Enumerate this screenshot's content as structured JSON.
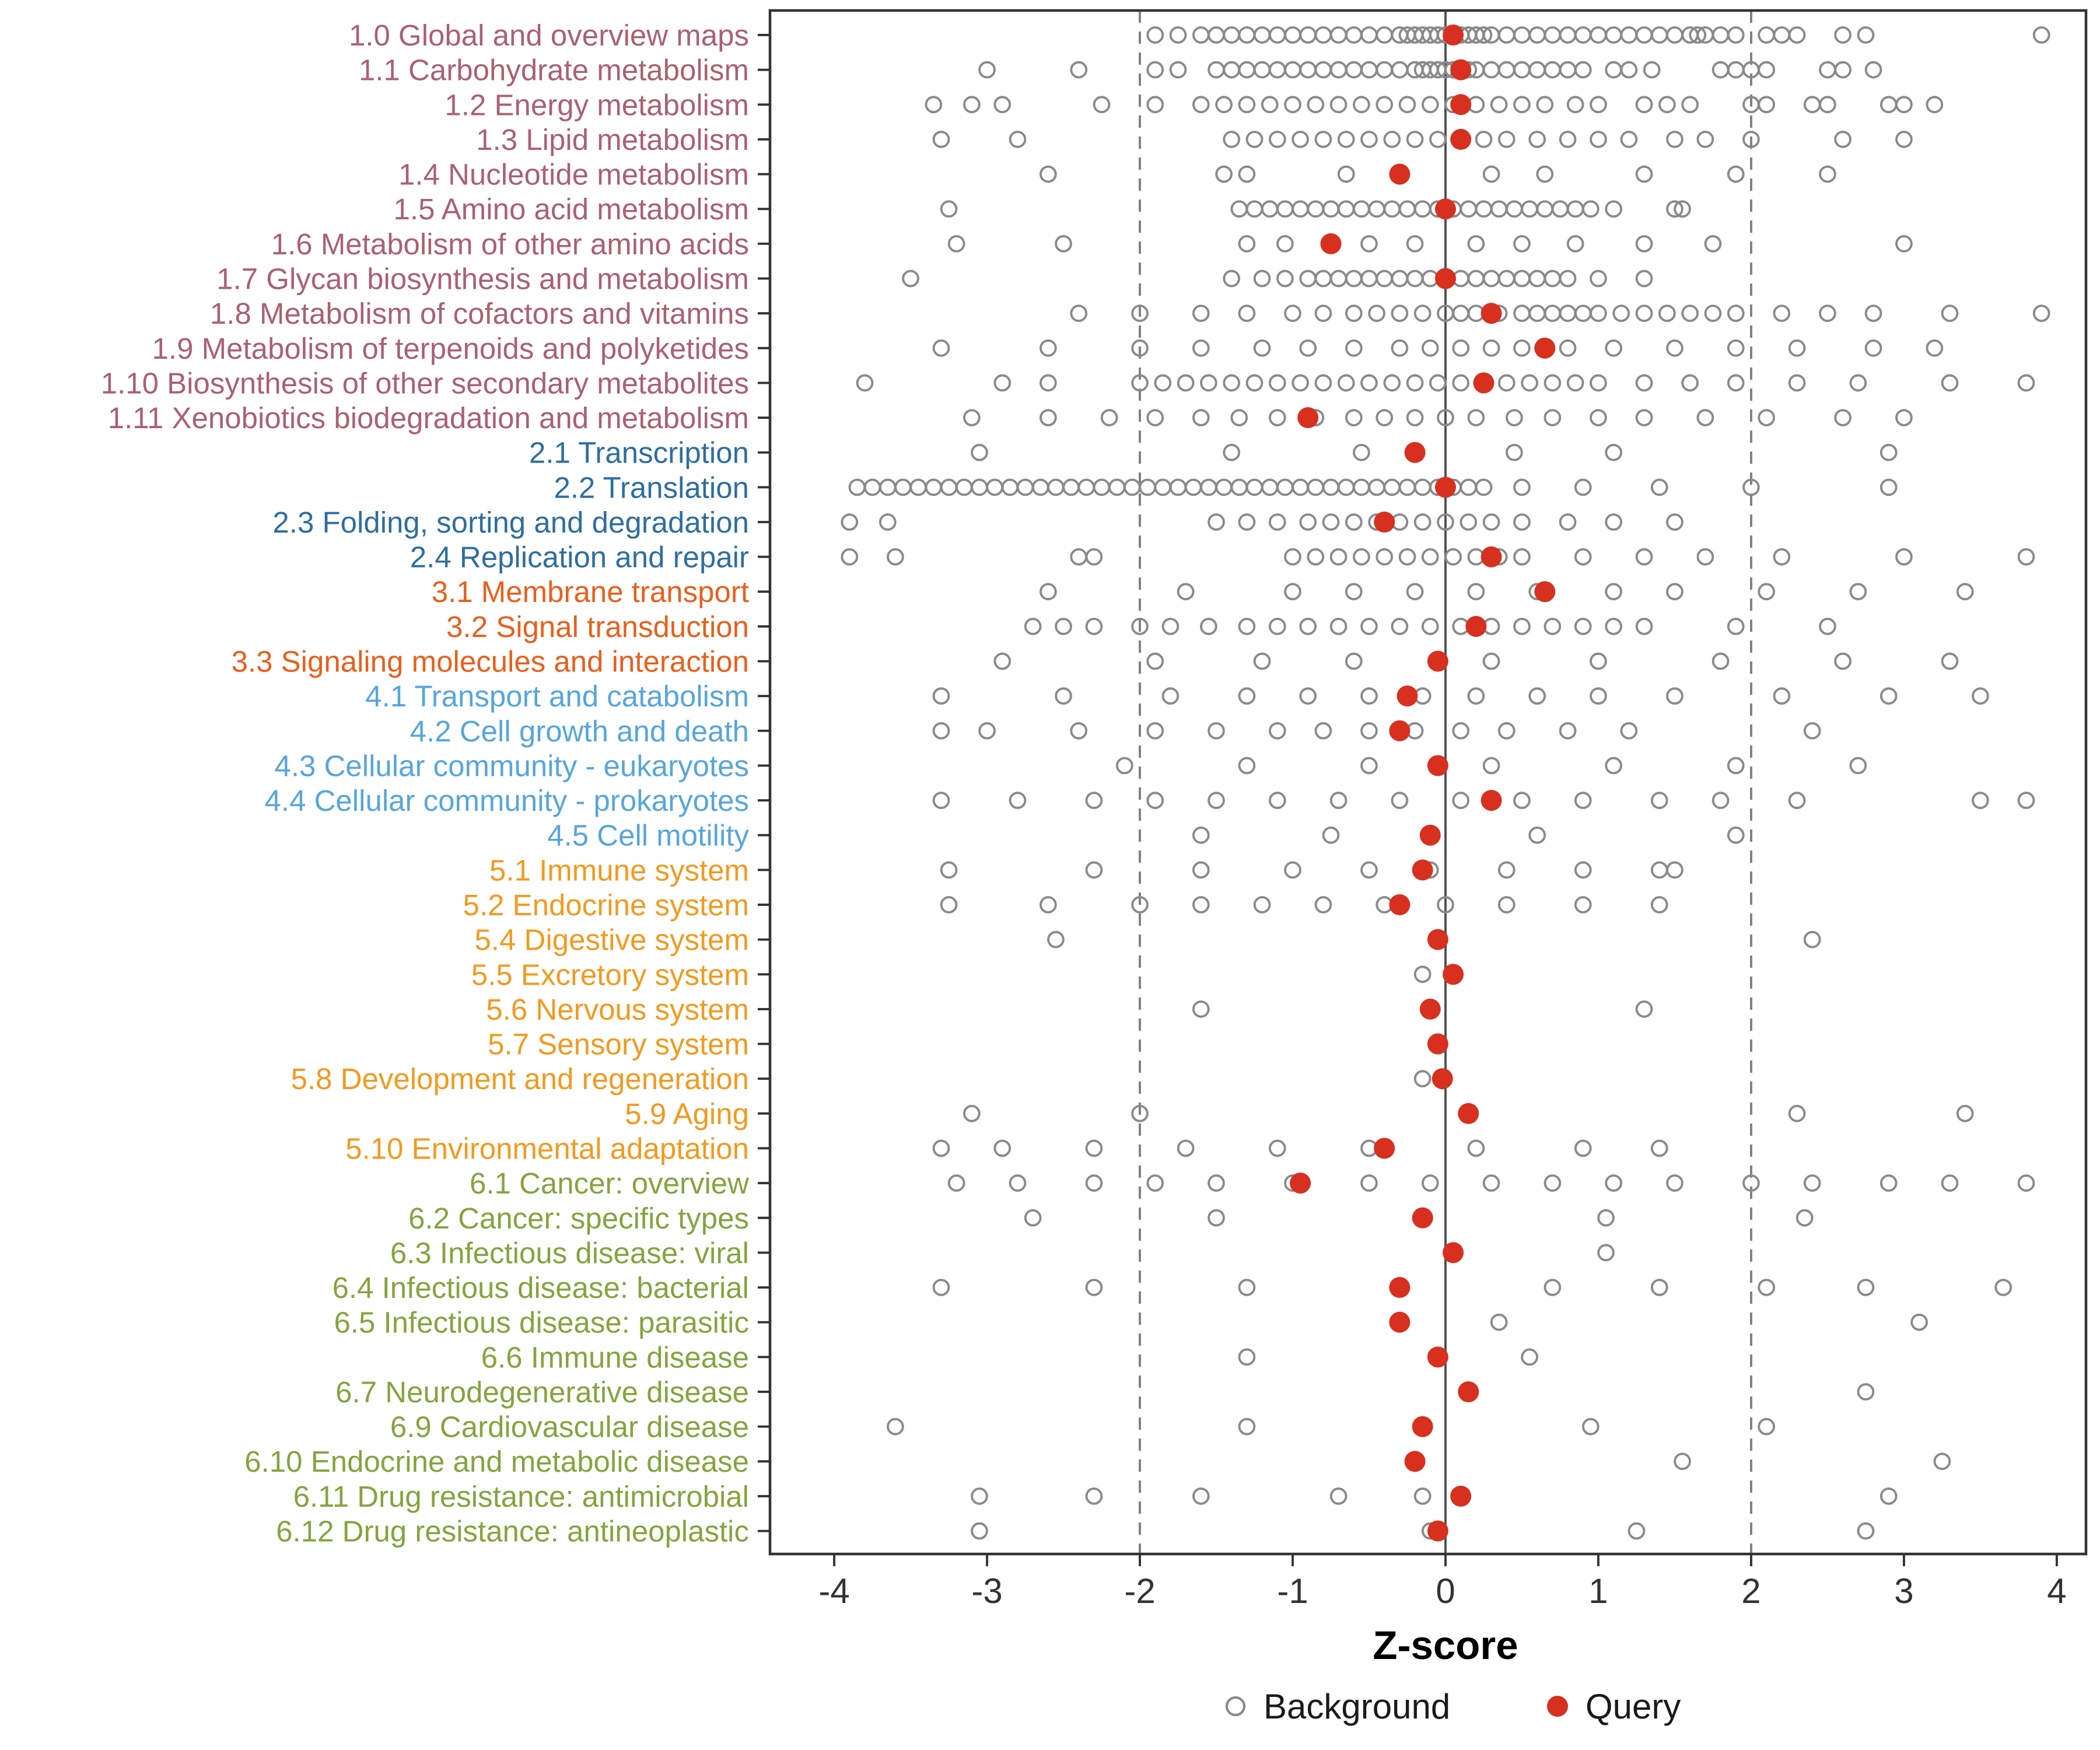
{
  "chart_data": {
    "type": "scatter",
    "title": "",
    "xlabel": "Z-score",
    "xlim": [
      -4.45,
      4.2
    ],
    "xticks": [
      -4,
      -3,
      -2,
      -1,
      0,
      1,
      2,
      3,
      4
    ],
    "grid": false,
    "legend_position": "bottom",
    "legend": {
      "background": "Background",
      "query": "Query"
    },
    "reference_lines": {
      "solid": [
        0
      ],
      "dashed": [
        -2,
        2
      ]
    },
    "colors": {
      "query": "#d7301f",
      "background_stroke": "#8a8a8a",
      "refline": "#7f7f7f",
      "zeroline": "#4d4d4d",
      "axis": "#333333"
    },
    "group_colors": {
      "1": "#aa6172",
      "2": "#2e6e9e",
      "3": "#e8601c",
      "4": "#56a6dc",
      "5": "#f39a1f",
      "6": "#85a43e"
    },
    "rows": [
      {
        "label": "1.0 Global and overview maps",
        "group": "1",
        "query": 0.05,
        "background": [
          -1.9,
          -1.75,
          -1.6,
          -1.5,
          -1.4,
          -1.3,
          -1.2,
          -1.1,
          -1.0,
          -0.9,
          -0.8,
          -0.7,
          -0.6,
          -0.5,
          -0.4,
          -0.3,
          -0.25,
          -0.2,
          -0.15,
          -0.1,
          -0.05,
          0,
          0.05,
          0.1,
          0.15,
          0.2,
          0.25,
          0.3,
          0.4,
          0.5,
          0.6,
          0.7,
          0.8,
          0.9,
          1.0,
          1.1,
          1.2,
          1.3,
          1.4,
          1.5,
          1.6,
          1.65,
          1.7,
          1.8,
          1.9,
          2.1,
          2.2,
          2.3,
          2.6,
          2.75,
          3.9
        ]
      },
      {
        "label": "1.1 Carbohydrate metabolism",
        "group": "1",
        "query": 0.1,
        "background": [
          -3.0,
          -2.4,
          -1.9,
          -1.75,
          -1.5,
          -1.4,
          -1.3,
          -1.2,
          -1.1,
          -1.0,
          -0.9,
          -0.8,
          -0.7,
          -0.6,
          -0.5,
          -0.4,
          -0.3,
          -0.2,
          -0.15,
          -0.1,
          -0.05,
          0,
          0.05,
          0.1,
          0.15,
          0.2,
          0.3,
          0.4,
          0.5,
          0.6,
          0.7,
          0.8,
          0.9,
          1.1,
          1.2,
          1.35,
          1.8,
          1.9,
          2.0,
          2.1,
          2.5,
          2.6,
          2.8
        ]
      },
      {
        "label": "1.2 Energy metabolism",
        "group": "1",
        "query": 0.1,
        "background": [
          -3.35,
          -3.1,
          -2.9,
          -2.25,
          -1.9,
          -1.6,
          -1.45,
          -1.3,
          -1.15,
          -1.0,
          -0.85,
          -0.7,
          -0.55,
          -0.4,
          -0.25,
          -0.1,
          0.05,
          0.2,
          0.35,
          0.5,
          0.65,
          0.85,
          1.0,
          1.3,
          1.45,
          1.6,
          2.0,
          2.1,
          2.4,
          2.5,
          2.9,
          3.0,
          3.2
        ]
      },
      {
        "label": "1.3 Lipid metabolism",
        "group": "1",
        "query": 0.1,
        "background": [
          -3.3,
          -2.8,
          -1.4,
          -1.25,
          -1.1,
          -0.95,
          -0.8,
          -0.65,
          -0.5,
          -0.35,
          -0.2,
          -0.05,
          0.1,
          0.25,
          0.4,
          0.6,
          0.8,
          1.0,
          1.2,
          1.5,
          1.7,
          2.0,
          2.6,
          3.0
        ]
      },
      {
        "label": "1.4 Nucleotide metabolism",
        "group": "1",
        "query": -0.3,
        "background": [
          -2.6,
          -1.45,
          -1.3,
          -0.65,
          0.3,
          0.65,
          1.3,
          1.9,
          2.5
        ]
      },
      {
        "label": "1.5 Amino acid metabolism",
        "group": "1",
        "query": 0.0,
        "background": [
          -3.25,
          -1.35,
          -1.25,
          -1.15,
          -1.05,
          -0.95,
          -0.85,
          -0.75,
          -0.65,
          -0.55,
          -0.45,
          -0.35,
          -0.25,
          -0.15,
          -0.05,
          0.05,
          0.15,
          0.25,
          0.35,
          0.45,
          0.55,
          0.65,
          0.75,
          0.85,
          0.95,
          1.1,
          1.5,
          1.55
        ]
      },
      {
        "label": "1.6 Metabolism of other amino acids",
        "group": "1",
        "query": -0.75,
        "background": [
          -3.2,
          -2.5,
          -1.3,
          -1.05,
          -0.5,
          -0.2,
          0.2,
          0.5,
          0.85,
          1.3,
          1.75,
          3.0
        ]
      },
      {
        "label": "1.7 Glycan biosynthesis and metabolism",
        "group": "1",
        "query": 0.0,
        "background": [
          -3.5,
          -1.4,
          -1.2,
          -1.05,
          -0.9,
          -0.8,
          -0.7,
          -0.6,
          -0.5,
          -0.4,
          -0.3,
          -0.2,
          -0.1,
          0,
          0.1,
          0.2,
          0.3,
          0.4,
          0.5,
          0.6,
          0.7,
          0.8,
          1.0,
          1.3
        ]
      },
      {
        "label": "1.8 Metabolism of cofactors and vitamins",
        "group": "1",
        "query": 0.3,
        "background": [
          -2.4,
          -2.0,
          -1.6,
          -1.3,
          -1.0,
          -0.8,
          -0.6,
          -0.45,
          -0.3,
          -0.15,
          0,
          0.1,
          0.2,
          0.35,
          0.5,
          0.6,
          0.7,
          0.8,
          0.9,
          1.0,
          1.15,
          1.3,
          1.45,
          1.6,
          1.75,
          1.9,
          2.2,
          2.5,
          2.8,
          3.3,
          3.9
        ]
      },
      {
        "label": "1.9 Metabolism of terpenoids and polyketides",
        "group": "1",
        "query": 0.65,
        "background": [
          -3.3,
          -2.6,
          -2.0,
          -1.6,
          -1.2,
          -0.9,
          -0.6,
          -0.3,
          -0.1,
          0.1,
          0.3,
          0.5,
          0.8,
          1.1,
          1.5,
          1.9,
          2.3,
          2.8,
          3.2
        ]
      },
      {
        "label": "1.10 Biosynthesis of other secondary metabolites",
        "group": "1",
        "query": 0.25,
        "background": [
          -3.8,
          -2.9,
          -2.6,
          -2.0,
          -1.85,
          -1.7,
          -1.55,
          -1.4,
          -1.25,
          -1.1,
          -0.95,
          -0.8,
          -0.65,
          -0.5,
          -0.35,
          -0.2,
          -0.05,
          0.1,
          0.25,
          0.4,
          0.55,
          0.7,
          0.85,
          1.0,
          1.3,
          1.6,
          1.9,
          2.3,
          2.7,
          3.3,
          3.8
        ]
      },
      {
        "label": "1.11 Xenobiotics biodegradation and metabolism",
        "group": "1",
        "query": -0.9,
        "background": [
          -3.1,
          -2.6,
          -2.2,
          -1.9,
          -1.6,
          -1.35,
          -1.1,
          -0.85,
          -0.6,
          -0.4,
          -0.2,
          0,
          0.2,
          0.45,
          0.7,
          1.0,
          1.3,
          1.7,
          2.1,
          2.6,
          3.0
        ]
      },
      {
        "label": "2.1 Transcription",
        "group": "2",
        "query": -0.2,
        "background": [
          -3.05,
          -1.4,
          -0.55,
          0.45,
          1.1,
          2.9
        ]
      },
      {
        "label": "2.2 Translation",
        "group": "2",
        "query": 0.0,
        "background": [
          -3.85,
          -3.75,
          -3.65,
          -3.55,
          -3.45,
          -3.35,
          -3.25,
          -3.15,
          -3.05,
          -2.95,
          -2.85,
          -2.75,
          -2.65,
          -2.55,
          -2.45,
          -2.35,
          -2.25,
          -2.15,
          -2.05,
          -1.95,
          -1.85,
          -1.75,
          -1.65,
          -1.55,
          -1.45,
          -1.35,
          -1.25,
          -1.15,
          -1.05,
          -0.95,
          -0.85,
          -0.75,
          -0.65,
          -0.55,
          -0.45,
          -0.35,
          -0.25,
          -0.15,
          -0.05,
          0.05,
          0.15,
          0.25,
          0.5,
          0.9,
          1.4,
          2.0,
          2.9
        ]
      },
      {
        "label": "2.3 Folding, sorting and degradation",
        "group": "2",
        "query": -0.4,
        "background": [
          -3.9,
          -3.65,
          -1.5,
          -1.3,
          -1.1,
          -0.9,
          -0.75,
          -0.6,
          -0.45,
          -0.3,
          -0.15,
          0,
          0.15,
          0.3,
          0.5,
          0.8,
          1.1,
          1.5
        ]
      },
      {
        "label": "2.4 Replication and repair",
        "group": "2",
        "query": 0.3,
        "background": [
          -3.9,
          -3.6,
          -2.4,
          -2.3,
          -1.0,
          -0.85,
          -0.7,
          -0.55,
          -0.4,
          -0.25,
          -0.1,
          0.05,
          0.2,
          0.35,
          0.5,
          0.9,
          1.3,
          1.7,
          2.2,
          3.0,
          3.8
        ]
      },
      {
        "label": "3.1 Membrane transport",
        "group": "3",
        "query": 0.65,
        "background": [
          -2.6,
          -1.7,
          -1.0,
          -0.6,
          -0.2,
          0.2,
          0.6,
          1.1,
          1.5,
          2.1,
          2.7,
          3.4
        ]
      },
      {
        "label": "3.2 Signal transduction",
        "group": "3",
        "query": 0.2,
        "background": [
          -2.7,
          -2.5,
          -2.3,
          -2.0,
          -1.8,
          -1.55,
          -1.3,
          -1.1,
          -0.9,
          -0.7,
          -0.5,
          -0.3,
          -0.1,
          0.1,
          0.3,
          0.5,
          0.7,
          0.9,
          1.1,
          1.3,
          1.9,
          2.5
        ]
      },
      {
        "label": "3.3 Signaling molecules and interaction",
        "group": "3",
        "query": -0.05,
        "background": [
          -2.9,
          -1.9,
          -1.2,
          -0.6,
          0.3,
          1.0,
          1.8,
          2.6,
          3.3
        ]
      },
      {
        "label": "4.1 Transport and catabolism",
        "group": "4",
        "query": -0.25,
        "background": [
          -3.3,
          -2.5,
          -1.8,
          -1.3,
          -0.9,
          -0.5,
          -0.15,
          0.2,
          0.6,
          1.0,
          1.5,
          2.2,
          2.9,
          3.5
        ]
      },
      {
        "label": "4.2 Cell growth and death",
        "group": "4",
        "query": -0.3,
        "background": [
          -3.3,
          -3.0,
          -2.4,
          -1.9,
          -1.5,
          -1.1,
          -0.8,
          -0.5,
          -0.2,
          0.1,
          0.4,
          0.8,
          1.2,
          2.4
        ]
      },
      {
        "label": "4.3 Cellular community - eukaryotes",
        "group": "4",
        "query": -0.05,
        "background": [
          -2.1,
          -1.3,
          -0.5,
          0.3,
          1.1,
          1.9,
          2.7
        ]
      },
      {
        "label": "4.4 Cellular community - prokaryotes",
        "group": "4",
        "query": 0.3,
        "background": [
          -3.3,
          -2.8,
          -2.3,
          -1.9,
          -1.5,
          -1.1,
          -0.7,
          -0.3,
          0.1,
          0.5,
          0.9,
          1.4,
          1.8,
          2.3,
          3.5,
          3.8
        ]
      },
      {
        "label": "4.5 Cell motility",
        "group": "4",
        "query": -0.1,
        "background": [
          -1.6,
          -0.75,
          0.6,
          1.9
        ]
      },
      {
        "label": "5.1 Immune system",
        "group": "5",
        "query": -0.15,
        "background": [
          -3.25,
          -2.3,
          -1.6,
          -1.0,
          -0.5,
          -0.1,
          0.4,
          0.9,
          1.4,
          1.5
        ]
      },
      {
        "label": "5.2 Endocrine system",
        "group": "5",
        "query": -0.3,
        "background": [
          -3.25,
          -2.6,
          -2.0,
          -1.6,
          -1.2,
          -0.8,
          -0.4,
          0,
          0.4,
          0.9,
          1.4
        ]
      },
      {
        "label": "5.4 Digestive system",
        "group": "5",
        "query": -0.05,
        "background": [
          -2.55,
          2.4
        ]
      },
      {
        "label": "5.5 Excretory system",
        "group": "5",
        "query": 0.05,
        "background": [
          -0.15
        ]
      },
      {
        "label": "5.6 Nervous system",
        "group": "5",
        "query": -0.1,
        "background": [
          -1.6,
          1.3
        ]
      },
      {
        "label": "5.7 Sensory system",
        "group": "5",
        "query": -0.05,
        "background": []
      },
      {
        "label": "5.8 Development and regeneration",
        "group": "5",
        "query": -0.02,
        "background": [
          -0.15
        ]
      },
      {
        "label": "5.9 Aging",
        "group": "5",
        "query": 0.15,
        "background": [
          -3.1,
          -2.0,
          2.3,
          3.4
        ]
      },
      {
        "label": "5.10 Environmental adaptation",
        "group": "5",
        "query": -0.4,
        "background": [
          -3.3,
          -2.9,
          -2.3,
          -1.7,
          -1.1,
          -0.5,
          0.2,
          0.9,
          1.4
        ]
      },
      {
        "label": "6.1 Cancer: overview",
        "group": "6",
        "query": -0.95,
        "background": [
          -3.2,
          -2.8,
          -2.3,
          -1.9,
          -1.5,
          -1.0,
          -0.5,
          -0.1,
          0.3,
          0.7,
          1.1,
          1.5,
          2.0,
          2.4,
          2.9,
          3.3,
          3.8
        ]
      },
      {
        "label": "6.2 Cancer: specific types",
        "group": "6",
        "query": -0.15,
        "background": [
          -2.7,
          -1.5,
          1.05,
          2.35
        ]
      },
      {
        "label": "6.3 Infectious disease: viral",
        "group": "6",
        "query": 0.05,
        "background": [
          1.05
        ]
      },
      {
        "label": "6.4 Infectious disease: bacterial",
        "group": "6",
        "query": -0.3,
        "background": [
          -3.3,
          -2.3,
          -1.3,
          0.7,
          1.4,
          2.1,
          2.75,
          3.65
        ]
      },
      {
        "label": "6.5 Infectious disease: parasitic",
        "group": "6",
        "query": -0.3,
        "background": [
          0.35,
          3.1
        ]
      },
      {
        "label": "6.6 Immune disease",
        "group": "6",
        "query": -0.05,
        "background": [
          -1.3,
          0.55
        ]
      },
      {
        "label": "6.7 Neurodegenerative disease",
        "group": "6",
        "query": 0.15,
        "background": [
          2.75
        ]
      },
      {
        "label": "6.9 Cardiovascular disease",
        "group": "6",
        "query": -0.15,
        "background": [
          -3.6,
          -1.3,
          0.95,
          2.1
        ]
      },
      {
        "label": "6.10 Endocrine and metabolic disease",
        "group": "6",
        "query": -0.2,
        "background": [
          1.55,
          3.25
        ]
      },
      {
        "label": "6.11 Drug resistance: antimicrobial",
        "group": "6",
        "query": 0.1,
        "background": [
          -3.05,
          -2.3,
          -1.6,
          -0.7,
          -0.15,
          2.9
        ]
      },
      {
        "label": "6.12 Drug resistance: antineoplastic",
        "group": "6",
        "query": -0.05,
        "background": [
          -3.05,
          -0.1,
          1.25,
          2.75
        ]
      }
    ]
  }
}
